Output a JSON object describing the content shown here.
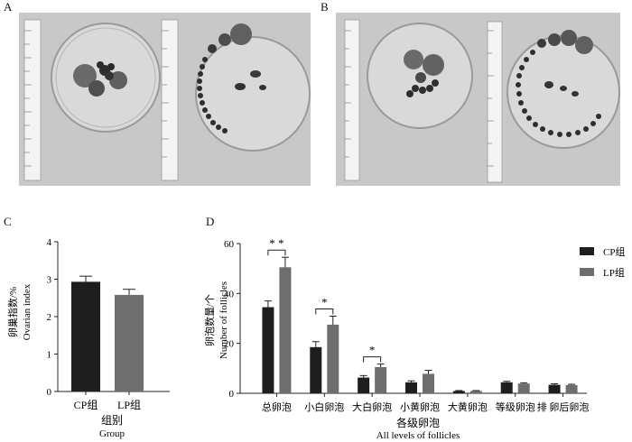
{
  "panels": {
    "a": "A",
    "b": "B",
    "c": "C",
    "d": "D"
  },
  "chart_data": [
    {
      "type": "bar",
      "panel": "C",
      "categories": [
        "CP组",
        "LP组"
      ],
      "values": [
        2.93,
        2.58
      ],
      "errors": [
        0.15,
        0.15
      ],
      "ylabel_cn": "卵巢指数/%",
      "ylabel_en": "Ovarian index",
      "xlabel_cn": "组别",
      "xlabel_en": "Group",
      "ylim": [
        0,
        4
      ],
      "yticks": [
        "0",
        "1",
        "2",
        "3",
        "4"
      ],
      "colors": [
        "#1e1e1e",
        "#6e6e6e"
      ]
    },
    {
      "type": "bar",
      "panel": "D",
      "categories": [
        "总卵泡",
        "小白卵泡",
        "大白卵泡",
        "小黄卵泡",
        "大黄卵泡",
        "等级卵泡",
        "排 卵后卵泡"
      ],
      "series": [
        {
          "name": "CP组",
          "color": "#1e1e1e",
          "values": [
            34.5,
            18.5,
            6.3,
            4.4,
            0.9,
            4.4,
            3.4
          ],
          "errors": [
            2.5,
            2.2,
            0.8,
            0.6,
            0.2,
            0.4,
            0.4
          ]
        },
        {
          "name": "LP组",
          "color": "#6e6e6e",
          "values": [
            50.5,
            27.5,
            10.5,
            7.8,
            0.9,
            3.9,
            3.3
          ],
          "errors": [
            4.0,
            3.4,
            1.2,
            1.4,
            0.2,
            0.3,
            0.3
          ]
        }
      ],
      "significance": [
        "* *",
        "*",
        "*",
        "",
        "",
        "",
        ""
      ],
      "ylabel_cn": "卵泡数量/个",
      "ylabel_en": "Number of follicles",
      "xlabel_cn": "各级卵泡",
      "xlabel_en": "All levels of follicles",
      "ylim": [
        0,
        60
      ],
      "yticks": [
        "0",
        "20",
        "40",
        "60"
      ],
      "legend_position": "top-right"
    }
  ]
}
